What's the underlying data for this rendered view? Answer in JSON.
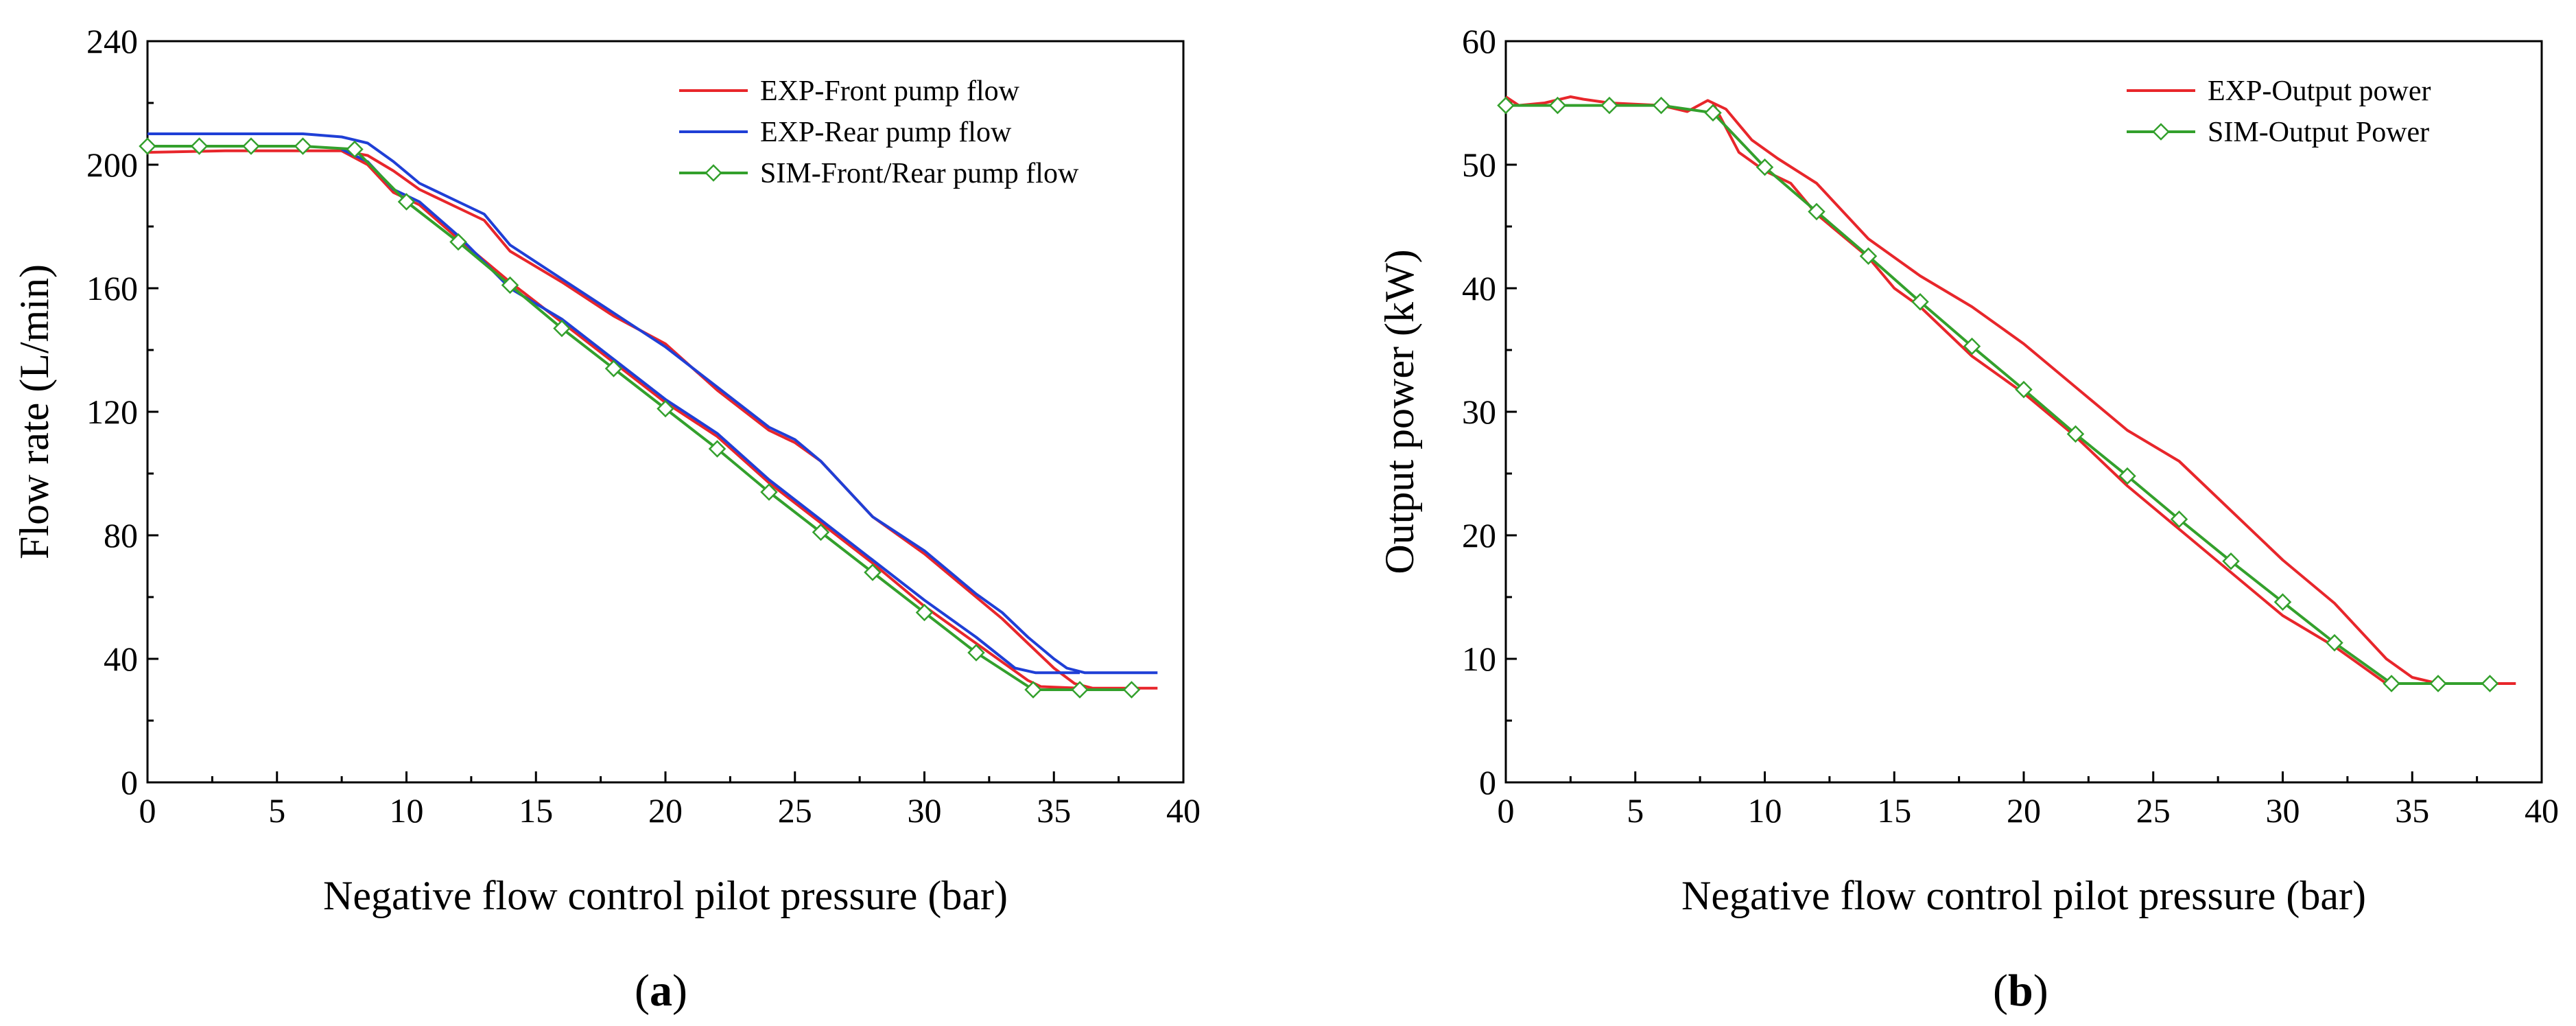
{
  "chart_data": [
    {
      "type": "line",
      "id": "a",
      "caption_letter": "a",
      "xlabel": "Negative flow control pilot pressure (bar)",
      "ylabel": "Flow rate (L/min)",
      "xlim": [
        0,
        40
      ],
      "ylim": [
        0,
        240
      ],
      "xticks": [
        0,
        5,
        10,
        15,
        20,
        25,
        30,
        35,
        40
      ],
      "yticks": [
        0,
        40,
        80,
        120,
        160,
        200,
        240
      ],
      "legend_position": "top-right",
      "series": [
        {
          "name": "EXP-Front pump flow",
          "color": "#e8262b",
          "marker": "none",
          "points": [
            [
              0,
              204
            ],
            [
              3,
              204.5
            ],
            [
              6,
              204.5
            ],
            [
              7.5,
              204.5
            ],
            [
              8.5,
              203
            ],
            [
              9.5,
              198
            ],
            [
              10.5,
              192
            ],
            [
              12,
              186
            ],
            [
              13,
              182
            ],
            [
              14,
              172
            ],
            [
              16,
              162
            ],
            [
              18,
              151
            ],
            [
              20,
              142
            ],
            [
              22,
              127
            ],
            [
              24,
              114
            ],
            [
              25,
              110
            ],
            [
              26,
              104
            ],
            [
              28,
              86
            ],
            [
              30,
              74
            ],
            [
              32,
              60
            ],
            [
              33,
              53
            ],
            [
              34,
              45
            ],
            [
              35,
              37
            ],
            [
              35.8,
              32
            ],
            [
              36.5,
              30.5
            ],
            [
              39,
              30.5
            ]
          ]
        },
        {
          "name": "EXP-Rear pump flow",
          "color": "#1f3fd6",
          "marker": "none",
          "points": [
            [
              0,
              210
            ],
            [
              3,
              210
            ],
            [
              6,
              210
            ],
            [
              7.5,
              209
            ],
            [
              8.5,
              207
            ],
            [
              9.5,
              201
            ],
            [
              10.5,
              194
            ],
            [
              12,
              188
            ],
            [
              13,
              184
            ],
            [
              14,
              174
            ],
            [
              16,
              163
            ],
            [
              18,
              152
            ],
            [
              20,
              141
            ],
            [
              22,
              128
            ],
            [
              24,
              115
            ],
            [
              25,
              111
            ],
            [
              26,
              104
            ],
            [
              28,
              86
            ],
            [
              30,
              75
            ],
            [
              32,
              61
            ],
            [
              33,
              55
            ],
            [
              34,
              47
            ],
            [
              35,
              40
            ],
            [
              35.5,
              37
            ],
            [
              36.2,
              35.5
            ],
            [
              39,
              35.5
            ]
          ]
        },
        {
          "name": "EXP-Front pump flow (low)",
          "color": "#e8262b",
          "marker": "none",
          "points": [
            [
              7.5,
              204.5
            ],
            [
              8.5,
              200
            ],
            [
              9.5,
              191
            ],
            [
              10.5,
              187
            ],
            [
              12,
              176
            ],
            [
              14,
              162
            ],
            [
              16,
              149
            ],
            [
              18,
              136
            ],
            [
              20,
              123
            ],
            [
              22,
              112
            ],
            [
              24,
              97
            ],
            [
              26,
              84
            ],
            [
              28,
              71
            ],
            [
              30,
              57
            ],
            [
              32,
              45
            ],
            [
              34,
              33
            ],
            [
              34.5,
              31
            ],
            [
              36,
              30.5
            ]
          ]
        },
        {
          "name": "EXP-Rear pump flow (low)",
          "color": "#1f3fd6",
          "marker": "none",
          "points": [
            [
              7.5,
              205
            ],
            [
              8.5,
              201
            ],
            [
              9.5,
              192
            ],
            [
              10.5,
              188
            ],
            [
              12,
              177
            ],
            [
              14,
              160
            ],
            [
              16,
              150
            ],
            [
              18,
              137
            ],
            [
              20,
              124
            ],
            [
              22,
              113
            ],
            [
              24,
              98
            ],
            [
              26,
              85
            ],
            [
              28,
              72
            ],
            [
              30,
              59
            ],
            [
              32,
              47
            ],
            [
              33.5,
              37
            ],
            [
              34.3,
              35.5
            ],
            [
              36,
              35.5
            ]
          ]
        },
        {
          "name": "SIM-Front/Rear pump flow",
          "color": "#33a02c",
          "marker": "diamond",
          "points": [
            [
              0,
              206
            ],
            [
              2,
              206
            ],
            [
              4,
              206
            ],
            [
              6,
              206
            ],
            [
              8,
              205
            ],
            [
              10,
              188
            ],
            [
              12,
              175
            ],
            [
              14,
              161
            ],
            [
              16,
              147
            ],
            [
              18,
              134
            ],
            [
              20,
              121
            ],
            [
              22,
              108
            ],
            [
              24,
              94
            ],
            [
              26,
              81
            ],
            [
              28,
              68
            ],
            [
              30,
              55
            ],
            [
              32,
              42
            ],
            [
              34.2,
              30
            ],
            [
              36,
              30
            ],
            [
              38,
              30
            ]
          ]
        }
      ],
      "legend": [
        "EXP-Front pump flow",
        "EXP-Rear pump flow",
        "SIM-Front/Rear pump flow"
      ]
    },
    {
      "type": "line",
      "id": "b",
      "caption_letter": "b",
      "xlabel": "Negative flow control pilot pressure (bar)",
      "ylabel": "Output power (kW)",
      "xlim": [
        0,
        40
      ],
      "ylim": [
        0,
        60
      ],
      "xticks": [
        0,
        5,
        10,
        15,
        20,
        25,
        30,
        35,
        40
      ],
      "yticks": [
        0,
        10,
        20,
        30,
        40,
        50,
        60
      ],
      "legend_position": "top-right",
      "series": [
        {
          "name": "EXP-Output power",
          "color": "#e8262b",
          "marker": "none",
          "points": [
            [
              0,
              55.5
            ],
            [
              0.5,
              54.8
            ],
            [
              1.5,
              55
            ],
            [
              2.5,
              55.5
            ],
            [
              3,
              55.3
            ],
            [
              4,
              55
            ],
            [
              6,
              54.8
            ],
            [
              7,
              54.3
            ],
            [
              7.8,
              55.2
            ],
            [
              8.5,
              54.5
            ],
            [
              9.5,
              52
            ],
            [
              10.5,
              50.5
            ],
            [
              12,
              48.5
            ],
            [
              14,
              44
            ],
            [
              16,
              41
            ],
            [
              18,
              38.5
            ],
            [
              20,
              35.5
            ],
            [
              22,
              32
            ],
            [
              24,
              28.5
            ],
            [
              26,
              26
            ],
            [
              28,
              22
            ],
            [
              30,
              18
            ],
            [
              32,
              14.5
            ],
            [
              34,
              10
            ],
            [
              35,
              8.5
            ],
            [
              36,
              8
            ],
            [
              39,
              8
            ]
          ]
        },
        {
          "name": "EXP-Output power (low)",
          "color": "#e8262b",
          "marker": "none",
          "points": [
            [
              8,
              55
            ],
            [
              9,
              51
            ],
            [
              10,
              49.5
            ],
            [
              11,
              48.5
            ],
            [
              12,
              46
            ],
            [
              14,
              42.5
            ],
            [
              15,
              40
            ],
            [
              16,
              38.5
            ],
            [
              18,
              34.5
            ],
            [
              20,
              31.5
            ],
            [
              22,
              28
            ],
            [
              24,
              24
            ],
            [
              26,
              20.5
            ],
            [
              28,
              17
            ],
            [
              30,
              13.5
            ],
            [
              32,
              11
            ],
            [
              34,
              8
            ],
            [
              36,
              8
            ]
          ]
        },
        {
          "name": "SIM-Output Power",
          "color": "#33a02c",
          "marker": "diamond",
          "points": [
            [
              0,
              54.8
            ],
            [
              2,
              54.8
            ],
            [
              4,
              54.8
            ],
            [
              6,
              54.8
            ],
            [
              8,
              54.2
            ],
            [
              10,
              49.8
            ],
            [
              12,
              46.2
            ],
            [
              14,
              42.6
            ],
            [
              16,
              38.9
            ],
            [
              18,
              35.3
            ],
            [
              20,
              31.8
            ],
            [
              22,
              28.2
            ],
            [
              24,
              24.8
            ],
            [
              26,
              21.3
            ],
            [
              28,
              17.9
            ],
            [
              30,
              14.6
            ],
            [
              32,
              11.3
            ],
            [
              34.2,
              8
            ],
            [
              36,
              8
            ],
            [
              38,
              8
            ]
          ]
        }
      ],
      "legend": [
        "EXP-Output power",
        "SIM-Output Power"
      ]
    }
  ]
}
